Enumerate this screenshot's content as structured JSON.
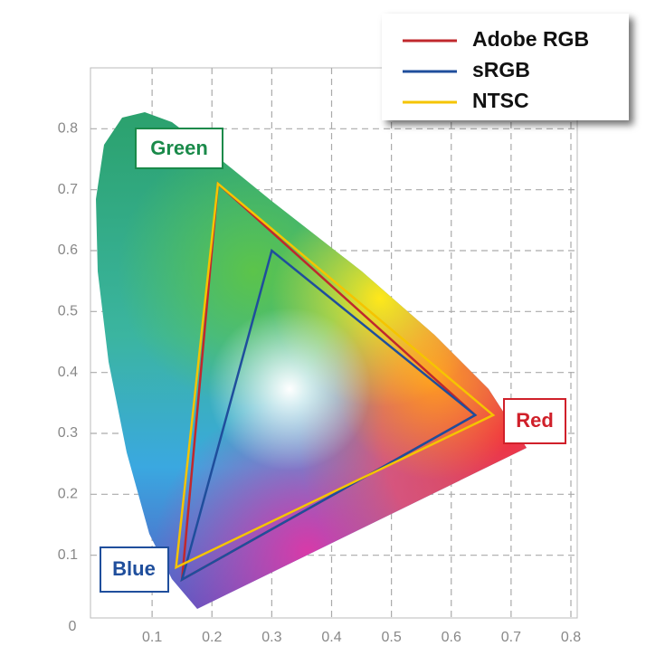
{
  "chart_data": {
    "type": "gamut",
    "xlim": [
      0,
      0.8
    ],
    "ylim": [
      0,
      0.9
    ],
    "xticks": [
      0,
      0.1,
      0.2,
      0.3,
      0.4,
      0.5,
      0.6,
      0.7,
      0.8
    ],
    "yticks": [
      0.1,
      0.2,
      0.3,
      0.4,
      0.5,
      0.6,
      0.7,
      0.8
    ],
    "grid": true,
    "legend": "upper right",
    "series": [
      {
        "name": "Adobe RGB",
        "color": "#c0282d",
        "x": [
          0.64,
          0.21,
          0.15
        ],
        "values": [
          0.33,
          0.71,
          0.06
        ]
      },
      {
        "name": "sRGB",
        "color": "#1f4e9c",
        "x": [
          0.64,
          0.3,
          0.15
        ],
        "values": [
          0.33,
          0.6,
          0.06
        ]
      },
      {
        "name": "NTSC",
        "color": "#f5c400",
        "x": [
          0.67,
          0.21,
          0.14
        ],
        "values": [
          0.33,
          0.71,
          0.08
        ]
      }
    ],
    "annotations": [
      {
        "text": "Green",
        "color": "#1a8a4a"
      },
      {
        "text": "Red",
        "color": "#d0202a"
      },
      {
        "text": "Blue",
        "color": "#1f4e9c"
      }
    ]
  }
}
